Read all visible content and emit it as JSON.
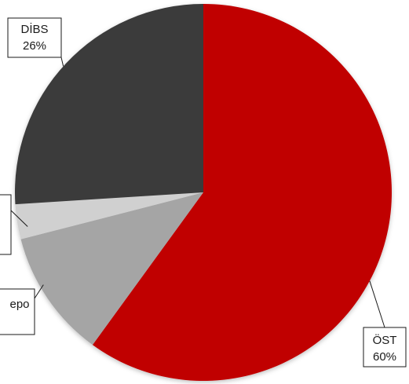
{
  "chart_data": {
    "type": "pie",
    "slices": [
      {
        "label": "ÖST",
        "value": 60,
        "display": "60%",
        "color": "#c00000"
      },
      {
        "label": "",
        "value": 11,
        "display": "",
        "color": "#a5a5a5"
      },
      {
        "label": "",
        "value": 3,
        "display": "",
        "color": "#d0d0d0"
      },
      {
        "label": "DİBS",
        "value": 26,
        "display": "26%",
        "color": "#3a3a3a"
      }
    ],
    "callouts": [
      {
        "slice": 0,
        "line1": "ÖST",
        "line2": "60%"
      },
      {
        "slice": 3,
        "line1": "DİBS",
        "line2": "26%"
      },
      {
        "slice": 1,
        "line1": "epo",
        "line2": ""
      },
      {
        "slice": 2,
        "line1": "",
        "line2": ""
      }
    ],
    "start_angle_deg": 0,
    "direction": "clockwise",
    "legend": "none"
  }
}
